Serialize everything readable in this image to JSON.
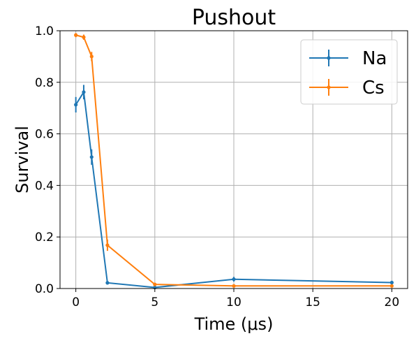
{
  "chart_data": {
    "type": "line",
    "title": "Pushout",
    "xlabel": "Time (μs)",
    "ylabel": "Survival",
    "xlim": [
      -1,
      21
    ],
    "ylim": [
      0,
      1.0
    ],
    "xticks": [
      0,
      5,
      10,
      15,
      20
    ],
    "xtick_labels": [
      "0",
      "5",
      "10",
      "15",
      "20"
    ],
    "yticks": [
      0.0,
      0.2,
      0.4,
      0.6,
      0.8,
      1.0
    ],
    "ytick_labels": [
      "0.0",
      "0.2",
      "0.4",
      "0.6",
      "0.8",
      "1.0"
    ],
    "grid": true,
    "legend_position": "top-right",
    "series": [
      {
        "name": "Na",
        "color": "#1f77b4",
        "points": [
          {
            "x": 0,
            "y": 0.713,
            "err": 0.03
          },
          {
            "x": 0.5,
            "y": 0.762,
            "err": 0.028
          },
          {
            "x": 1,
            "y": 0.51,
            "err": 0.03
          },
          {
            "x": 2,
            "y": 0.022,
            "err": 0.005
          },
          {
            "x": 5,
            "y": 0.004,
            "err": 0.003
          },
          {
            "x": 10,
            "y": 0.036,
            "err": 0.009
          },
          {
            "x": 20,
            "y": 0.023,
            "err": 0.007
          }
        ]
      },
      {
        "name": "Cs",
        "color": "#ff7f0e",
        "points": [
          {
            "x": 0,
            "y": 0.983,
            "err": 0.008
          },
          {
            "x": 0.5,
            "y": 0.975,
            "err": 0.01
          },
          {
            "x": 1,
            "y": 0.9,
            "err": 0.018
          },
          {
            "x": 2,
            "y": 0.168,
            "err": 0.022
          },
          {
            "x": 5,
            "y": 0.016,
            "err": 0.004
          },
          {
            "x": 10,
            "y": 0.01,
            "err": 0.003
          },
          {
            "x": 20,
            "y": 0.01,
            "err": 0.003
          }
        ]
      }
    ]
  }
}
